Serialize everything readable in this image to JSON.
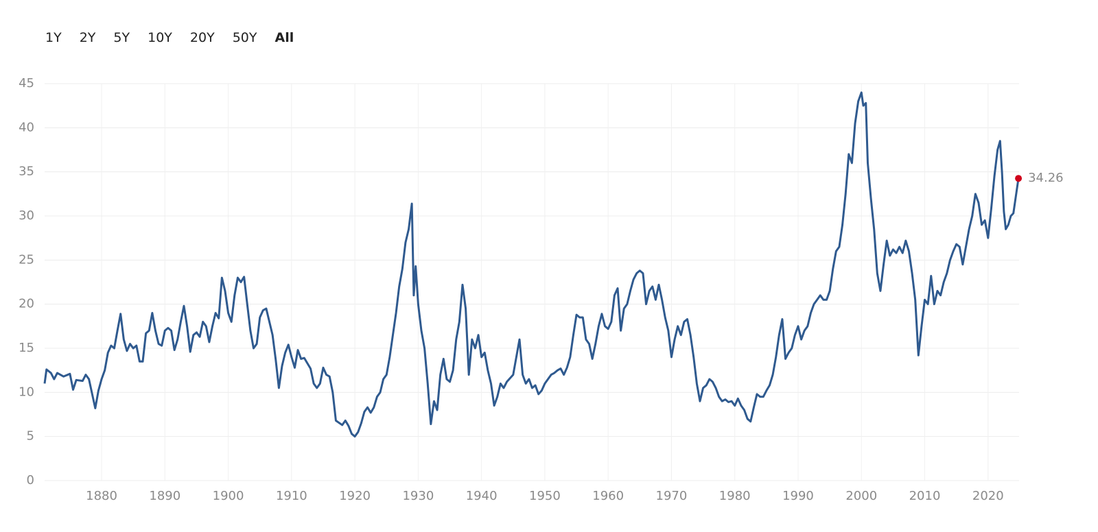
{
  "range_selector": {
    "buttons": [
      "1Y",
      "2Y",
      "5Y",
      "10Y",
      "20Y",
      "50Y",
      "All"
    ],
    "selected": 6
  },
  "chart_data": {
    "type": "line",
    "xlim": [
      1871,
      2024.9
    ],
    "xticks": [
      1880,
      1890,
      1900,
      1910,
      1920,
      1930,
      1940,
      1950,
      1960,
      1970,
      1980,
      1990,
      2000,
      2010,
      2020
    ],
    "ylim": [
      0,
      45
    ],
    "yticks": [
      0,
      5,
      10,
      15,
      20,
      25,
      30,
      35,
      40,
      45
    ],
    "grid": true,
    "last_point_color": "#d0021b",
    "x": [
      1871.0,
      1871.3,
      1872,
      1872.5,
      1873,
      1874,
      1875,
      1875.5,
      1876,
      1877,
      1877.5,
      1878,
      1879.0,
      1879.5,
      1880,
      1880.5,
      1881,
      1881.5,
      1882,
      1882.5,
      1883,
      1883.5,
      1884,
      1884.5,
      1885,
      1885.5,
      1886,
      1886.5,
      1887,
      1887.5,
      1888,
      1888.5,
      1889,
      1889.5,
      1890,
      1890.5,
      1891,
      1891.5,
      1892,
      1892.5,
      1893,
      1893.5,
      1894,
      1894.5,
      1895,
      1895.5,
      1896,
      1896.5,
      1897,
      1897.5,
      1898,
      1898.5,
      1899,
      1899.5,
      1900,
      1900.5,
      1901,
      1901.5,
      1902,
      1902.5,
      1903,
      1903.5,
      1904,
      1904.5,
      1905,
      1905.5,
      1906,
      1906.5,
      1907,
      1907.5,
      1908,
      1908.5,
      1909,
      1909.5,
      1910,
      1910.5,
      1911,
      1911.5,
      1912,
      1913,
      1913.5,
      1914,
      1914.5,
      1915,
      1915.5,
      1916,
      1916.5,
      1917,
      1918,
      1918.5,
      1919,
      1919.5,
      1920,
      1920.5,
      1921,
      1921.5,
      1922,
      1922.5,
      1923,
      1923.5,
      1924,
      1924.5,
      1925,
      1925.5,
      1926,
      1926.5,
      1927,
      1927.5,
      1928,
      1928.5,
      1929,
      1929.3,
      1929.6,
      1930,
      1930.5,
      1931,
      1931.5,
      1932,
      1932.5,
      1933,
      1933.5,
      1934,
      1934.5,
      1935,
      1935.5,
      1936,
      1936.5,
      1937,
      1937.5,
      1938,
      1938.5,
      1939,
      1939.5,
      1940,
      1940.5,
      1941,
      1941.5,
      1942,
      1942.5,
      1943,
      1943.5,
      1944,
      1944.5,
      1945,
      1945.5,
      1946,
      1946.5,
      1947,
      1947.5,
      1948,
      1948.5,
      1949,
      1949.5,
      1950,
      1950.5,
      1951,
      1951.5,
      1952,
      1952.5,
      1953,
      1953.5,
      1954,
      1954.5,
      1955,
      1955.5,
      1956,
      1956.5,
      1957,
      1957.5,
      1958,
      1958.5,
      1959,
      1959.5,
      1960,
      1960.5,
      1961,
      1961.5,
      1962,
      1962.5,
      1963,
      1963.5,
      1964,
      1964.5,
      1965,
      1965.5,
      1966,
      1966.5,
      1967,
      1967.5,
      1968,
      1968.5,
      1969,
      1969.5,
      1970,
      1970.5,
      1971,
      1971.5,
      1972,
      1972.5,
      1973,
      1973.5,
      1974,
      1974.5,
      1975,
      1975.5,
      1976,
      1976.5,
      1977,
      1977.5,
      1978,
      1978.5,
      1979,
      1979.5,
      1980,
      1980.5,
      1981,
      1981.5,
      1982,
      1982.5,
      1983,
      1983.5,
      1984,
      1984.5,
      1985,
      1985.5,
      1986,
      1986.5,
      1987,
      1987.5,
      1988,
      1988.5,
      1989,
      1989.5,
      1990,
      1990.5,
      1991,
      1991.5,
      1992,
      1992.5,
      1993,
      1993.5,
      1994,
      1994.5,
      1995,
      1995.5,
      1996,
      1996.5,
      1997,
      1997.5,
      1998,
      1998.5,
      1999,
      1999.5,
      2000,
      2000.3,
      2000.7,
      2001,
      2001.5,
      2002,
      2002.5,
      2003,
      2003.5,
      2004,
      2004.5,
      2005,
      2005.5,
      2006,
      2006.5,
      2007,
      2007.5,
      2008,
      2008.5,
      2009,
      2009.5,
      2010,
      2010.5,
      2011,
      2011.5,
      2012,
      2012.5,
      2013,
      2013.5,
      2014,
      2014.5,
      2015,
      2015.5,
      2016,
      2016.5,
      2017,
      2017.5,
      2018,
      2018.5,
      2019,
      2019.5,
      2020,
      2020.5,
      2021,
      2021.5,
      2021.9,
      2022.2,
      2022.5,
      2022.8,
      2023.2,
      2023.6,
      2024,
      2024.8
    ],
    "series": [
      {
        "color": "#2f5a8f",
        "values": [
          11,
          12.6,
          12.2,
          11.5,
          12.2,
          11.8,
          12.1,
          10.3,
          11.4,
          11.3,
          12,
          11.5,
          8.2,
          10.2,
          11.5,
          12.5,
          14.5,
          15.3,
          15,
          17,
          18.9,
          16,
          14.7,
          15.5,
          15,
          15.3,
          13.5,
          13.5,
          16.7,
          17,
          19,
          17,
          15.5,
          15.3,
          17,
          17.3,
          17,
          14.8,
          16,
          18,
          19.8,
          17.5,
          14.6,
          16.5,
          16.8,
          16.3,
          18,
          17.5,
          15.7,
          17.5,
          19,
          18.4,
          23,
          21.5,
          19,
          18,
          21,
          23,
          22.5,
          23.1,
          20,
          17,
          15,
          15.5,
          18.5,
          19.3,
          19.5,
          18,
          16.5,
          13.7,
          10.5,
          13,
          14.5,
          15.4,
          14,
          12.8,
          14.8,
          13.8,
          13.9,
          12.7,
          11,
          10.5,
          11,
          12.8,
          12,
          11.8,
          10,
          6.8,
          6.3,
          6.8,
          6.2,
          5.3,
          5,
          5.5,
          6.5,
          7.8,
          8.3,
          7.7,
          8.3,
          9.5,
          10,
          11.5,
          12,
          14,
          16.5,
          19,
          22,
          24,
          27,
          28.5,
          31.4,
          21,
          24.3,
          20,
          17,
          15,
          11,
          6.4,
          9,
          8,
          12,
          13.8,
          11.5,
          11.2,
          12.5,
          16,
          18,
          22.2,
          19.5,
          12,
          16,
          15,
          16.5,
          14,
          14.5,
          12.5,
          11,
          8.5,
          9.5,
          11,
          10.5,
          11.2,
          11.6,
          12,
          14,
          16,
          12,
          11,
          11.5,
          10.5,
          10.8,
          9.8,
          10.2,
          11,
          11.5,
          12,
          12.2,
          12.5,
          12.7,
          12,
          12.8,
          14,
          16.5,
          18.8,
          18.5,
          18.5,
          16,
          15.5,
          13.8,
          15.5,
          17.5,
          18.9,
          17.5,
          17.2,
          18,
          21,
          21.8,
          17,
          19.5,
          20,
          21.5,
          22.8,
          23.5,
          23.8,
          23.5,
          20,
          21.5,
          22,
          20.5,
          22.2,
          20.5,
          18.5,
          17,
          14,
          16,
          17.5,
          16.5,
          18,
          18.3,
          16.5,
          14,
          11,
          9,
          10.5,
          10.8,
          11.5,
          11.2,
          10.5,
          9.5,
          9,
          9.2,
          8.9,
          9,
          8.5,
          9.3,
          8.5,
          8,
          7,
          6.7,
          8.3,
          9.8,
          9.5,
          9.5,
          10.2,
          10.8,
          12,
          14,
          16.5,
          18.3,
          13.8,
          14.5,
          15,
          16.5,
          17.5,
          16,
          17,
          17.5,
          19,
          20,
          20.5,
          21,
          20.5,
          20.5,
          21.5,
          24,
          26,
          26.5,
          29,
          32.5,
          37,
          36,
          40.5,
          43,
          44,
          42.5,
          42.8,
          36,
          32,
          28.5,
          23.5,
          21.5,
          24.5,
          27.2,
          25.5,
          26.2,
          25.8,
          26.5,
          25.8,
          27.2,
          26,
          23.5,
          20.5,
          14.2,
          17.5,
          20.5,
          20,
          23.2,
          20,
          21.5,
          21,
          22.5,
          23.5,
          25,
          26,
          26.8,
          26.5,
          24.5,
          26.5,
          28.5,
          30,
          32.5,
          31.5,
          29,
          29.5,
          27.5,
          30.8,
          34.5,
          37.5,
          38.5,
          35,
          30.5,
          28.5,
          29,
          30,
          30.3,
          34.26
        ]
      }
    ]
  }
}
